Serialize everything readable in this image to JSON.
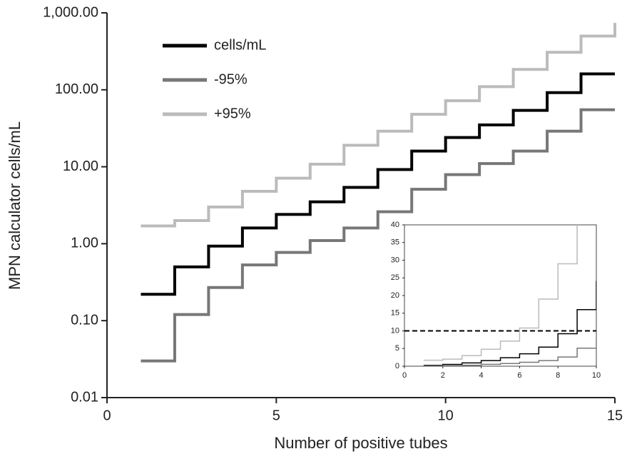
{
  "chart_data": [
    {
      "type": "line",
      "step": true,
      "x_label": "Number of positive tubes",
      "y_label": "MPN calculator cells/mL",
      "x": [
        1,
        2,
        3,
        4,
        5,
        6,
        7,
        8,
        9,
        10,
        11,
        12,
        13,
        14,
        15
      ],
      "series": [
        {
          "name": "cells/mL",
          "color": "#000000",
          "values": [
            0.22,
            0.5,
            0.93,
            1.6,
            2.4,
            3.5,
            5.4,
            9.2,
            16,
            24,
            35,
            54,
            92,
            161,
            161
          ]
        },
        {
          "name": "-95%",
          "color": "#777777",
          "values": [
            0.03,
            0.12,
            0.27,
            0.53,
            0.77,
            1.1,
            1.6,
            2.6,
            5.1,
            7.9,
            11,
            16,
            29,
            55,
            55
          ]
        },
        {
          "name": "+95%",
          "color": "#bbbbbb",
          "values": [
            1.7,
            2.0,
            3.0,
            4.8,
            7.1,
            10.8,
            19,
            29,
            48,
            72,
            110,
            184,
            307,
            500,
            740
          ]
        }
      ],
      "xlim": [
        0,
        15
      ],
      "xticks": [
        0,
        5,
        10,
        15
      ],
      "ylim": [
        0.01,
        1000
      ],
      "log_y": true,
      "yticks": [
        0.01,
        {
          "value": 0.1,
          "label": "0.10"
        },
        {
          "value": 1,
          "label": "1.00"
        },
        {
          "value": 10,
          "label": "10.00"
        },
        {
          "value": 100,
          "label": "100.00"
        },
        {
          "value": 1000,
          "label": "1,000.00"
        }
      ],
      "legend": "upper left"
    },
    {
      "type": "line",
      "step": true,
      "inset_of": 0,
      "xlim": [
        0,
        10
      ],
      "xticks": [
        0,
        2,
        4,
        6,
        8,
        10
      ],
      "ylim": [
        0,
        40
      ],
      "yticks": [
        0,
        5,
        10,
        15,
        20,
        25,
        30,
        35,
        40
      ],
      "reference_line": 10
    }
  ]
}
